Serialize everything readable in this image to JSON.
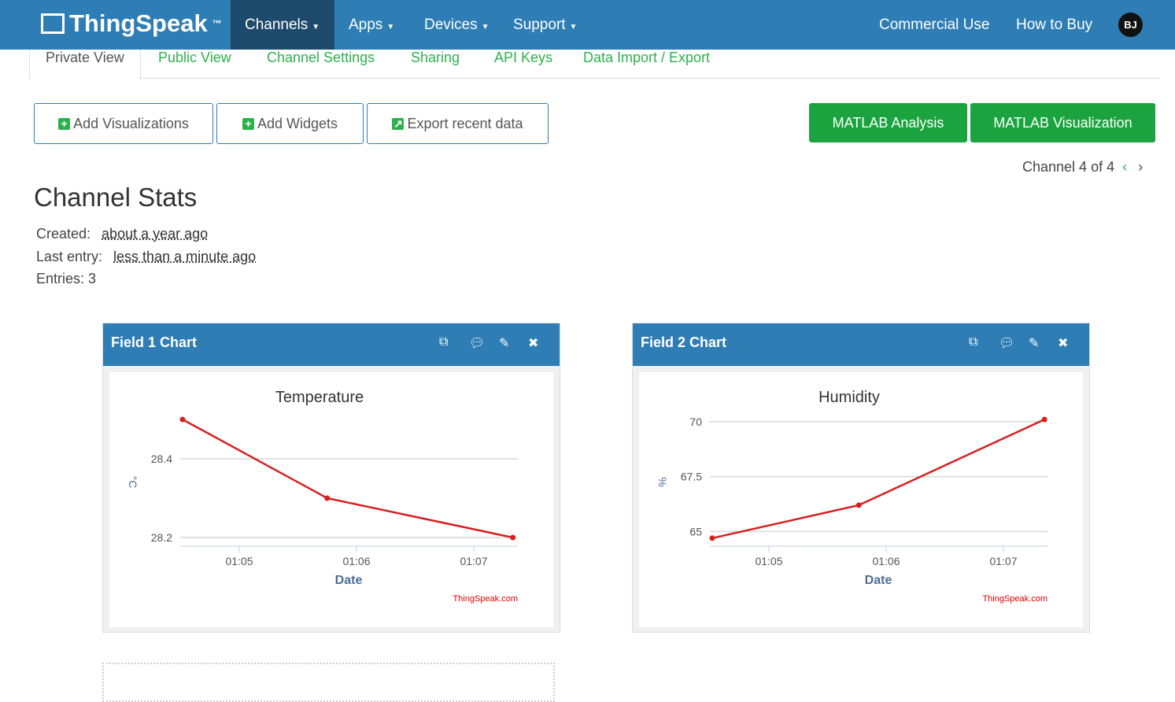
{
  "nav": {
    "brand": "ThingSpeak",
    "tm": "™",
    "items": [
      "Channels",
      "Apps",
      "Devices",
      "Support"
    ],
    "right": [
      "Commercial Use",
      "How to Buy"
    ],
    "avatar": "BJ"
  },
  "tabs": [
    "Private View",
    "Public View",
    "Channel Settings",
    "Sharing",
    "API Keys",
    "Data Import / Export"
  ],
  "buttons": {
    "add_viz": "Add Visualizations",
    "add_widgets": "Add Widgets",
    "export": "Export recent data",
    "matlab_analysis": "MATLAB Analysis",
    "matlab_viz": "MATLAB Visualization"
  },
  "channel_nav": "Channel 4 of 4",
  "stats": {
    "title": "Channel Stats",
    "created_label": "Created:",
    "created": "about a year ago",
    "last_label": "Last entry:",
    "last": "less than a minute ago",
    "entries": "Entries: 3"
  },
  "colors": {
    "nav": "#2e7db5",
    "accent": "#2db04b",
    "line": "#d62020"
  },
  "chart_data": [
    {
      "panel_title": "Field 1 Chart",
      "type": "line",
      "title": "Temperature",
      "xlabel": "Date",
      "ylabel": "°C",
      "x": [
        "01:04:31",
        "01:05:45",
        "01:07:20"
      ],
      "y": [
        28.5,
        28.3,
        28.2
      ],
      "yticks": [
        28.2,
        28.4
      ],
      "ylim": [
        28.19,
        28.5
      ],
      "xticks": [
        "01:05",
        "01:06",
        "01:07"
      ],
      "credit": "ThingSpeak.com"
    },
    {
      "panel_title": "Field 2 Chart",
      "type": "line",
      "title": "Humidity",
      "xlabel": "Date",
      "ylabel": "%",
      "x": [
        "01:04:31",
        "01:05:46",
        "01:07:21"
      ],
      "y": [
        64.7,
        66.2,
        70.1
      ],
      "yticks": [
        65,
        67.5,
        70
      ],
      "ylim": [
        64.55,
        70.1
      ],
      "xticks": [
        "01:05",
        "01:06",
        "01:07"
      ],
      "credit": "ThingSpeak.com"
    }
  ]
}
